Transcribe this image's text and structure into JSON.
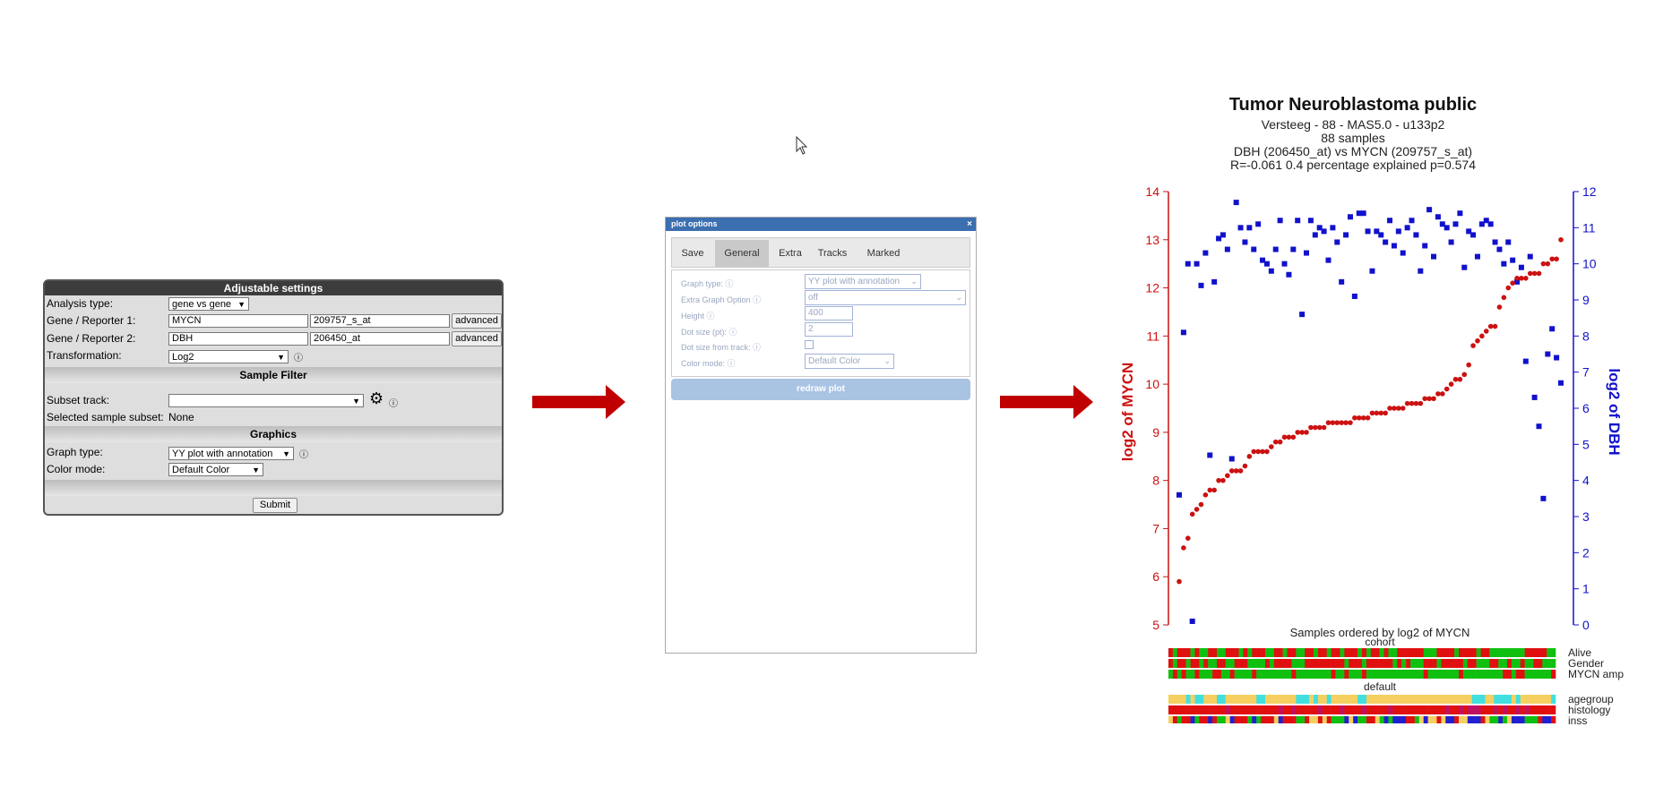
{
  "settings": {
    "header": "Adjustable settings",
    "analysis_type_label": "Analysis type:",
    "analysis_type_value": "gene vs gene",
    "gene1_label": "Gene / Reporter 1:",
    "gene1_value": "MYCN",
    "gene1_probe": "209757_s_at",
    "gene2_label": "Gene / Reporter 2:",
    "gene2_value": "DBH",
    "gene2_probe": "206450_at",
    "advanced_label": "advanced",
    "transformation_label": "Transformation:",
    "transformation_value": "Log2",
    "sample_filter_header": "Sample Filter",
    "subset_track_label": "Subset track:",
    "subset_track_value": "",
    "selected_subset_label": "Selected sample subset:",
    "selected_subset_value": "None",
    "graphics_header": "Graphics",
    "graph_type_label": "Graph type:",
    "graph_type_value": "YY plot with annotation",
    "color_mode_label": "Color mode:",
    "color_mode_value": "Default Color",
    "submit_label": "Submit"
  },
  "dialog": {
    "title": "plot options",
    "close": "×",
    "tabs": [
      "Save",
      "General",
      "Extra",
      "Tracks",
      "Marked"
    ],
    "active_tab": "General",
    "fields": {
      "graph_type_label": "Graph type:",
      "graph_type_value": "YY plot with annotation",
      "extra_option_label": "Extra Graph Option",
      "extra_option_value": "off",
      "height_label": "Height",
      "height_value": "400",
      "dot_size_label": "Dot size (pt):",
      "dot_size_value": "2",
      "dot_track_label": "Dot size from track:",
      "color_mode_label": "Color mode:",
      "color_mode_value": "Default Color"
    },
    "redraw_label": "redraw plot"
  },
  "figure": {
    "title": "Tumor Neuroblastoma public",
    "line1": "Versteeg - 88 - MAS5.0 - u133p2",
    "line2": "88 samples",
    "line3": "DBH (206450_at) vs MYCN (209757_s_at)",
    "line4": "R=-0.061 0.4 percentage explained p=0.574",
    "xlabel": "Samples ordered by log2 of MYCN",
    "cohort_label": "cohort",
    "default_label": "default",
    "track_labels": [
      "Alive",
      "Gender",
      "MYCN amp",
      "agegroup",
      "histology",
      "inss"
    ]
  },
  "colors": {
    "mycn": "#cc1111",
    "dbh": "#1111cc",
    "arrow": "#c00000"
  },
  "chart_data": {
    "type": "scatter",
    "title": "Tumor Neuroblastoma public",
    "xlabel": "Samples ordered by log2 of MYCN",
    "ylabel_left": "log2 of MYCN",
    "ylabel_right": "log2 of DBH",
    "ylim_left": [
      5,
      14
    ],
    "ylim_right": [
      0,
      12
    ],
    "yticks_left": [
      5,
      6,
      7,
      8,
      9,
      10,
      11,
      12,
      13,
      14
    ],
    "yticks_right": [
      0,
      1,
      2,
      3,
      4,
      5,
      6,
      7,
      8,
      9,
      10,
      11,
      12
    ],
    "series": [
      {
        "name": "log2 of MYCN",
        "axis": "left",
        "values": [
          5.9,
          6.6,
          6.8,
          7.3,
          7.4,
          7.5,
          7.7,
          7.8,
          7.8,
          8.0,
          8.0,
          8.1,
          8.2,
          8.2,
          8.2,
          8.3,
          8.5,
          8.6,
          8.6,
          8.6,
          8.6,
          8.7,
          8.8,
          8.8,
          8.9,
          8.9,
          8.9,
          9.0,
          9.0,
          9.0,
          9.1,
          9.1,
          9.1,
          9.1,
          9.2,
          9.2,
          9.2,
          9.2,
          9.2,
          9.2,
          9.3,
          9.3,
          9.3,
          9.3,
          9.4,
          9.4,
          9.4,
          9.4,
          9.5,
          9.5,
          9.5,
          9.5,
          9.6,
          9.6,
          9.6,
          9.6,
          9.7,
          9.7,
          9.7,
          9.8,
          9.8,
          9.9,
          10.0,
          10.1,
          10.1,
          10.2,
          10.4,
          10.8,
          10.9,
          11.0,
          11.1,
          11.2,
          11.2,
          11.6,
          11.8,
          12.0,
          12.1,
          12.2,
          12.2,
          12.2,
          12.3,
          12.3,
          12.3,
          12.5,
          12.5,
          12.6,
          12.6,
          13.0
        ]
      },
      {
        "name": "log2 of DBH",
        "axis": "right",
        "values": [
          3.6,
          8.1,
          10.0,
          0.1,
          10.0,
          9.4,
          10.3,
          4.7,
          9.5,
          10.7,
          10.8,
          10.4,
          4.6,
          11.7,
          11.0,
          10.6,
          11.0,
          10.4,
          11.1,
          10.1,
          10.0,
          9.8,
          10.4,
          11.2,
          10.0,
          9.7,
          10.4,
          11.2,
          8.6,
          10.3,
          11.2,
          10.8,
          11.0,
          10.9,
          10.1,
          11.0,
          10.6,
          9.5,
          10.8,
          11.3,
          9.1,
          11.4,
          11.4,
          10.9,
          9.8,
          10.9,
          10.8,
          10.6,
          11.2,
          10.5,
          10.9,
          10.3,
          11.0,
          11.2,
          10.8,
          9.8,
          10.5,
          11.5,
          10.2,
          11.3,
          11.1,
          11.0,
          10.6,
          11.1,
          11.4,
          9.9,
          10.9,
          10.8,
          10.2,
          11.1,
          11.2,
          11.1,
          10.6,
          10.4,
          10.0,
          10.6,
          10.1,
          9.5,
          9.9,
          7.3,
          10.2,
          6.3,
          5.5,
          3.5,
          7.5,
          8.2,
          7.4,
          6.7
        ]
      }
    ]
  }
}
